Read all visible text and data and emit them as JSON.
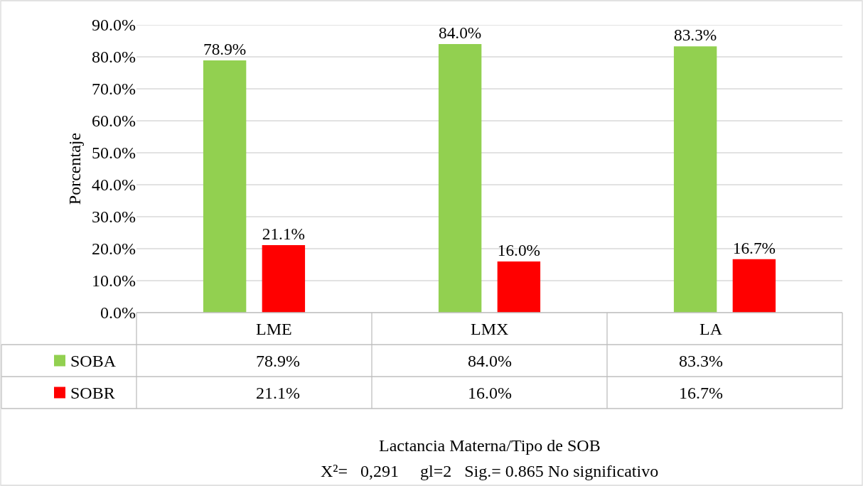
{
  "chart_data": {
    "type": "bar",
    "categories": [
      "LME",
      "LMX",
      "LA"
    ],
    "series": [
      {
        "name": "SOBA",
        "color": "#92d050",
        "values": [
          78.9,
          84.0,
          83.3
        ],
        "value_labels": [
          "78.9%",
          "84.0%",
          "83.3%"
        ]
      },
      {
        "name": "SOBR",
        "color": "#ff0000",
        "values": [
          21.1,
          16.0,
          16.7
        ],
        "value_labels": [
          "21.1%",
          "16.0%",
          "16.7%"
        ]
      }
    ],
    "ylabel": "Porcentaje",
    "annotations": [
      "Lactancia Materna/Tipo de SOB",
      "X²=   0,291     gl=2   Sig.= 0.865 No significativo"
    ],
    "ylim": [
      0,
      90
    ],
    "yticks": [
      {
        "value": 0,
        "label": "0.0%"
      },
      {
        "value": 10,
        "label": "10.0%"
      },
      {
        "value": 20,
        "label": "20.0%"
      },
      {
        "value": 30,
        "label": "30.0%"
      },
      {
        "value": 40,
        "label": "40.0%"
      },
      {
        "value": 50,
        "label": "50.0%"
      },
      {
        "value": 60,
        "label": "60.0%"
      },
      {
        "value": 70,
        "label": "70.0%"
      },
      {
        "value": 80,
        "label": "80.0%"
      },
      {
        "value": 90,
        "label": "90.0%"
      }
    ],
    "grid": "y",
    "legend": "bottom left"
  }
}
